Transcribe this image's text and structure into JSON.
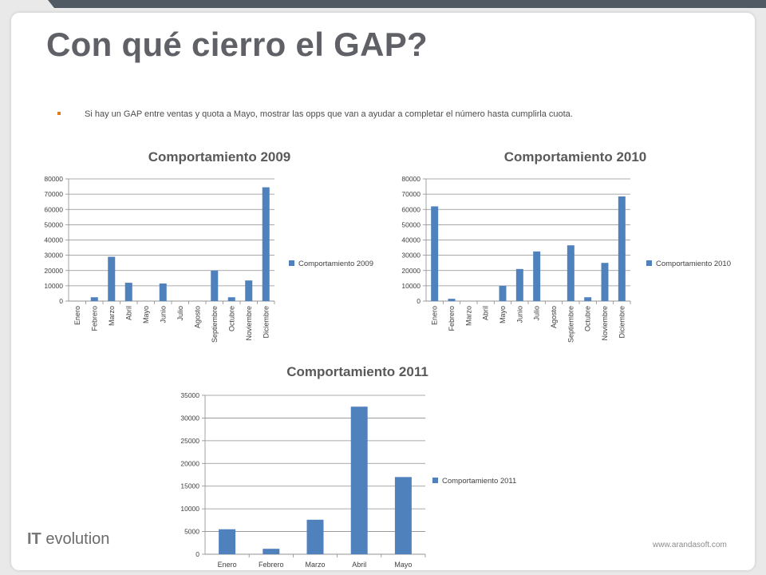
{
  "slide": {
    "title": "Con qué cierro el GAP?",
    "bullet": "Si hay un GAP entre ventas y quota a Mayo, mostrar las opps que van a ayudar a completar el número hasta cumplirla cuota.",
    "logo_bold": "IT",
    "logo_rest": " evolution",
    "website": "www.arandasoft.com"
  },
  "colors": {
    "bar": "#4f81bd",
    "title": "#5f6166",
    "bullet": "#e07b17"
  },
  "chart_data": [
    {
      "type": "bar",
      "title": "Comportamiento 2009",
      "categories": [
        "Enero",
        "Febrero",
        "Marzo",
        "Abril",
        "Mayo",
        "Junio",
        "Julio",
        "Agosto",
        "Septiembre",
        "Octubre",
        "Noviembre",
        "Diciembre"
      ],
      "series": [
        {
          "name": "Comportamiento 2009",
          "values": [
            0,
            2500,
            29000,
            12000,
            0,
            11500,
            0,
            0,
            20000,
            2500,
            13500,
            74500
          ]
        }
      ],
      "yticks": [
        "0",
        "10000",
        "20000",
        "30000",
        "40000",
        "50000",
        "60000",
        "70000",
        "80000"
      ],
      "ylim": [
        0,
        80000
      ],
      "grid": true,
      "legend": "right"
    },
    {
      "type": "bar",
      "title": "Comportamiento 2010",
      "categories": [
        "Enero",
        "Febrero",
        "Marzo",
        "Abril",
        "Mayo",
        "Junio",
        "Julio",
        "Agosto",
        "Septiembre",
        "Octubre",
        "Noviembre",
        "Diciembre"
      ],
      "series": [
        {
          "name": "Comportamiento 2010",
          "values": [
            62000,
            1500,
            0,
            0,
            10000,
            21000,
            32500,
            0,
            36500,
            2500,
            25000,
            68500
          ]
        }
      ],
      "yticks": [
        "0",
        "10000",
        "20000",
        "30000",
        "40000",
        "50000",
        "60000",
        "70000",
        "80000"
      ],
      "ylim": [
        0,
        80000
      ],
      "grid": true,
      "legend": "right"
    },
    {
      "type": "bar",
      "title": "Comportamiento 2011",
      "categories": [
        "Enero",
        "Febrero",
        "Marzo",
        "Abril",
        "Mayo"
      ],
      "series": [
        {
          "name": "Comportamiento 2011",
          "values": [
            5500,
            1200,
            7600,
            32500,
            17000
          ]
        }
      ],
      "yticks": [
        "0",
        "5000",
        "10000",
        "15000",
        "20000",
        "25000",
        "30000",
        "35000"
      ],
      "ylim": [
        0,
        35000
      ],
      "grid": true,
      "legend": "right"
    }
  ]
}
